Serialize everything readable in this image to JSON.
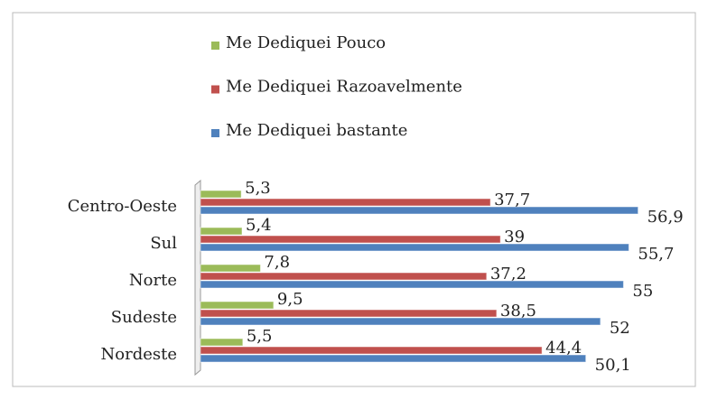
{
  "chart_data": {
    "type": "hbar",
    "categories": [
      "Centro-Oeste",
      "Sul",
      "Norte",
      "Sudeste",
      "Nordeste"
    ],
    "series": [
      {
        "name": "Me Dediquei Pouco",
        "color": "#9bbb59",
        "values": [
          5.3,
          5.4,
          7.8,
          9.5,
          5.5
        ],
        "value_labels": [
          "5,3",
          "5,4",
          "7,8",
          "9,5",
          "5,5"
        ]
      },
      {
        "name": "Me Dediquei Razoavelmente",
        "color": "#c0504d",
        "values": [
          37.7,
          39,
          37.2,
          38.5,
          44.4
        ],
        "value_labels": [
          "37,7",
          "39",
          "37,2",
          "38,5",
          "44,4"
        ]
      },
      {
        "name": "Me Dediquei bastante",
        "color": "#4f81bd",
        "values": [
          56.9,
          55.7,
          55,
          52,
          50.1
        ],
        "value_labels": [
          "56,9",
          "55,7",
          "55",
          "52",
          "50,1"
        ]
      }
    ],
    "xlim": [
      0,
      60
    ],
    "legend": "top"
  }
}
